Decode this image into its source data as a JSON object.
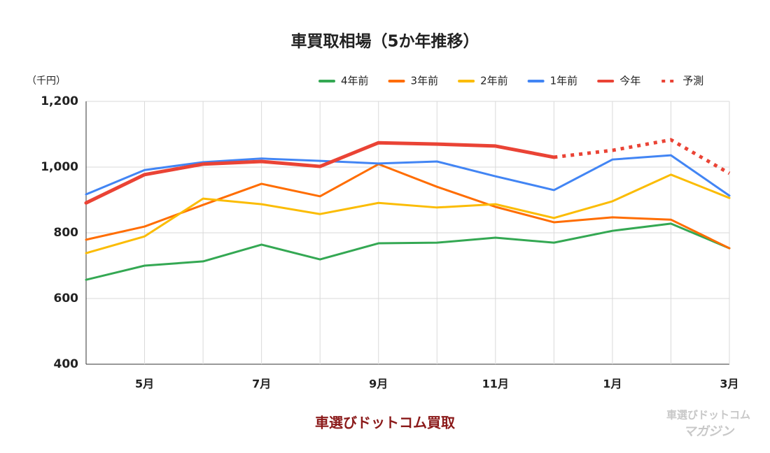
{
  "chart_data": {
    "type": "line",
    "title": "車買取相場（5か年推移）",
    "y_label": "（千円）",
    "source": "車選びドットコム買取",
    "watermark": [
      "車選びドットコム",
      "マガジン"
    ],
    "categories": [
      null,
      "5月",
      null,
      "7月",
      null,
      "9月",
      null,
      "11月",
      null,
      "1月",
      null,
      "3月"
    ],
    "series": [
      {
        "name": "4年前",
        "color": "#34a853",
        "values": [
          657,
          700,
          713,
          764,
          719,
          768,
          770,
          785,
          770,
          806,
          828,
          753
        ]
      },
      {
        "name": "3年前",
        "color": "#ff6d01",
        "values": [
          779,
          819,
          885,
          949,
          911,
          1009,
          940,
          879,
          832,
          847,
          840,
          753
        ]
      },
      {
        "name": "2年前",
        "color": "#fbbc04",
        "values": [
          738,
          789,
          904,
          887,
          857,
          891,
          877,
          887,
          845,
          896,
          977,
          906
        ]
      },
      {
        "name": "1年前",
        "color": "#4285f4",
        "values": [
          917,
          991,
          1015,
          1026,
          1019,
          1011,
          1017,
          972,
          930,
          1023,
          1036,
          913
        ]
      },
      {
        "name": "今年",
        "color": "#ea4335",
        "line_style": "bold",
        "values": [
          891,
          977,
          1009,
          1017,
          1002,
          1074,
          1070,
          1064,
          1030,
          null,
          null,
          null
        ]
      },
      {
        "name": "予測",
        "color": "#ea4335",
        "line_style": "dotted",
        "values": [
          null,
          null,
          null,
          null,
          null,
          null,
          null,
          null,
          1030,
          1051,
          1083,
          981
        ]
      }
    ],
    "ylim": [
      400,
      1200
    ],
    "yticks": [
      400,
      600,
      800,
      {
        "value": 1000,
        "label": "1,000"
      },
      {
        "value": 1200,
        "label": "1,200"
      }
    ],
    "grid": true,
    "legend": "top-right"
  }
}
